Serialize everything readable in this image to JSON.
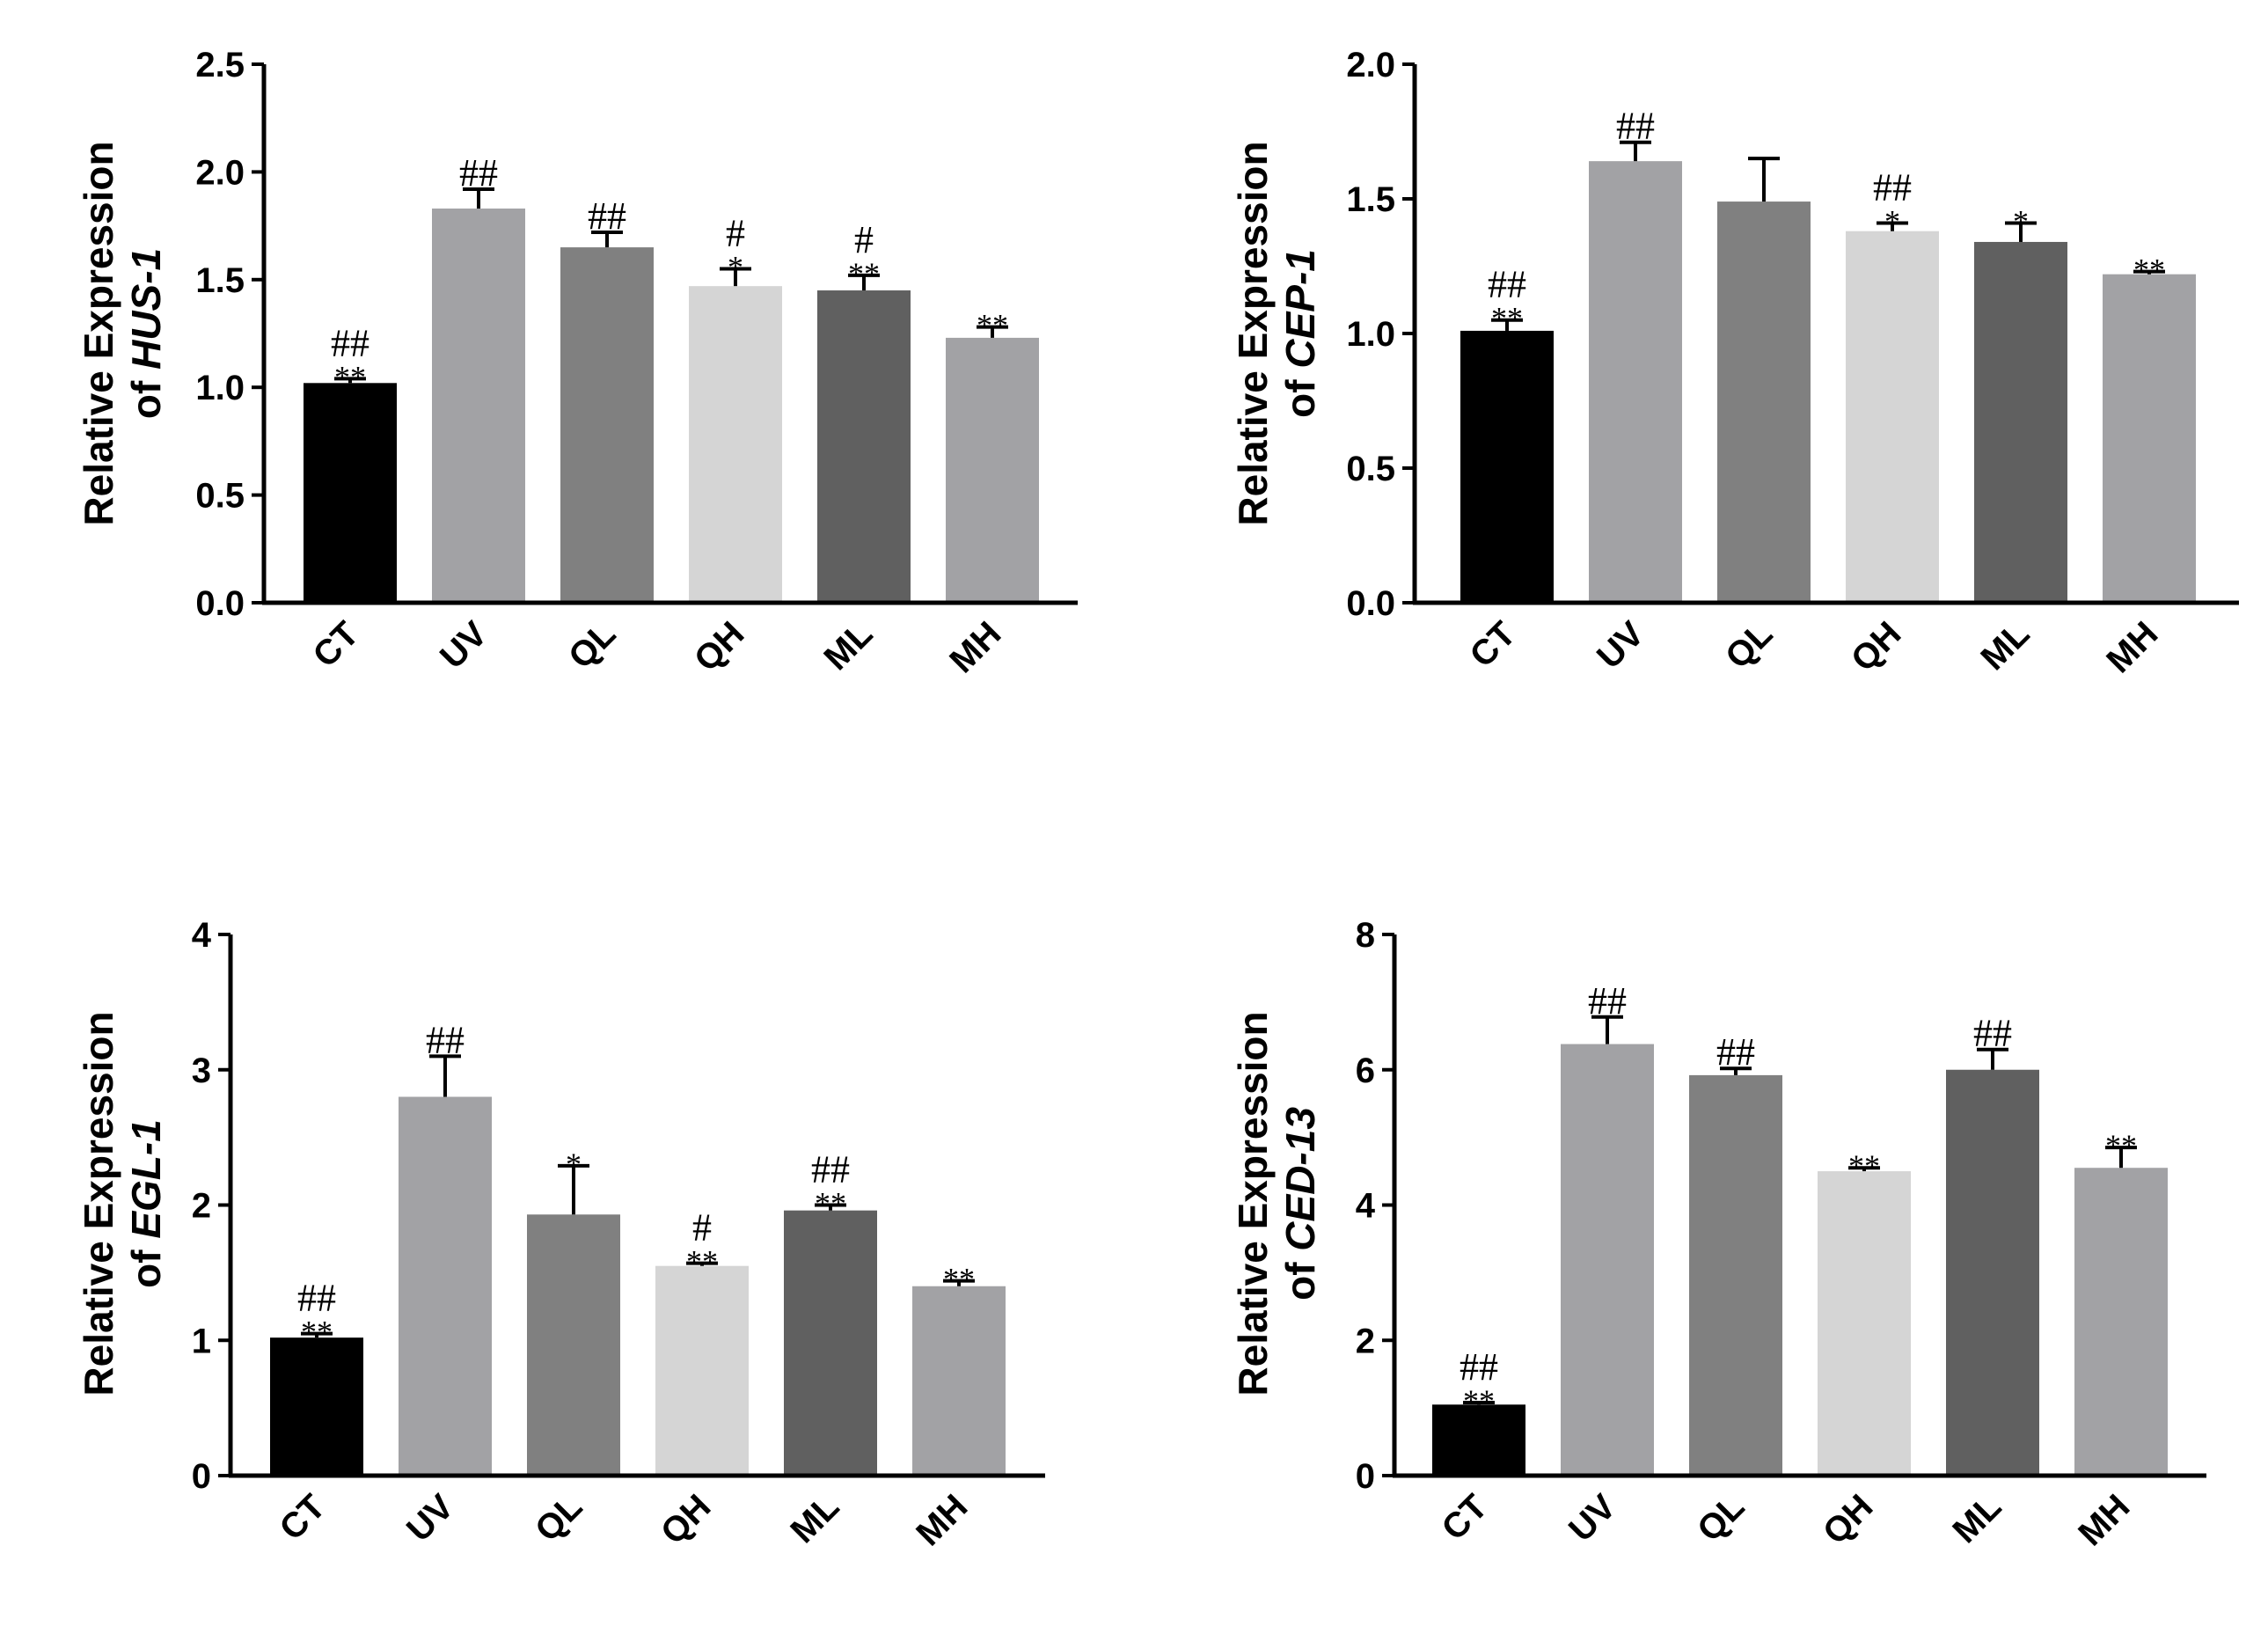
{
  "figure": {
    "title": "Relative gene expression panels"
  },
  "style": {
    "bar_colors": [
      "#000000",
      "#a2a2a5",
      "#808080",
      "#d5d5d5",
      "#606060",
      "#a2a2a5"
    ]
  },
  "chart_data": [
    {
      "type": "bar",
      "ylabel_line1": "Relative Expression",
      "ylabel_prefix": "of ",
      "gene": "HUS-1",
      "categories": [
        "CT",
        "UV",
        "QL",
        "QH",
        "ML",
        "MH"
      ],
      "values": [
        1.02,
        1.83,
        1.65,
        1.47,
        1.45,
        1.23
      ],
      "errors": [
        0.02,
        0.09,
        0.07,
        0.08,
        0.07,
        0.05
      ],
      "ylim": [
        0,
        2.5
      ],
      "yticks": [
        "0.0",
        "0.5",
        "1.0",
        "1.5",
        "2.0",
        "2.5"
      ],
      "star_marks": [
        "**",
        "",
        "",
        "*",
        "**",
        "**"
      ],
      "hash_marks": [
        "##",
        "##",
        "##",
        "#",
        "#",
        ""
      ]
    },
    {
      "type": "bar",
      "ylabel_line1": "Relative Expression",
      "ylabel_prefix": "of ",
      "gene": "CEP-1",
      "categories": [
        "CT",
        "UV",
        "QL",
        "QH",
        "ML",
        "MH"
      ],
      "values": [
        1.01,
        1.64,
        1.49,
        1.38,
        1.34,
        1.22
      ],
      "errors": [
        0.04,
        0.07,
        0.16,
        0.03,
        0.07,
        0.01
      ],
      "ylim": [
        0,
        2.0
      ],
      "yticks": [
        "0.0",
        "0.5",
        "1.0",
        "1.5",
        "2.0"
      ],
      "star_marks": [
        "**",
        "",
        "",
        "*",
        "*",
        "**"
      ],
      "hash_marks": [
        "##",
        "##",
        "",
        "##",
        "",
        ""
      ]
    },
    {
      "type": "bar",
      "ylabel_line1": "Relative Expression",
      "ylabel_prefix": "of ",
      "gene": "EGL-1",
      "categories": [
        "CT",
        "UV",
        "QL",
        "QH",
        "ML",
        "MH"
      ],
      "values": [
        1.02,
        2.8,
        1.93,
        1.55,
        1.96,
        1.4
      ],
      "errors": [
        0.03,
        0.3,
        0.36,
        0.02,
        0.04,
        0.04
      ],
      "ylim": [
        0,
        4
      ],
      "yticks": [
        "0",
        "1",
        "2",
        "3",
        "4"
      ],
      "star_marks": [
        "**",
        "",
        "*",
        "**",
        "**",
        "**"
      ],
      "hash_marks": [
        "##",
        "##",
        "",
        "#",
        "##",
        ""
      ]
    },
    {
      "type": "bar",
      "ylabel_line1": "Relative Expression",
      "ylabel_prefix": "of ",
      "gene": "CED-13",
      "categories": [
        "CT",
        "UV",
        "QL",
        "QH",
        "ML",
        "MH"
      ],
      "values": [
        1.05,
        6.38,
        5.92,
        4.5,
        6.0,
        4.55
      ],
      "errors": [
        0.03,
        0.4,
        0.1,
        0.05,
        0.3,
        0.3
      ],
      "ylim": [
        0,
        8
      ],
      "yticks": [
        "0",
        "2",
        "4",
        "6",
        "8"
      ],
      "star_marks": [
        "**",
        "",
        "",
        "**",
        "",
        "**"
      ],
      "hash_marks": [
        "##",
        "##",
        "##",
        "",
        "##",
        ""
      ]
    }
  ]
}
